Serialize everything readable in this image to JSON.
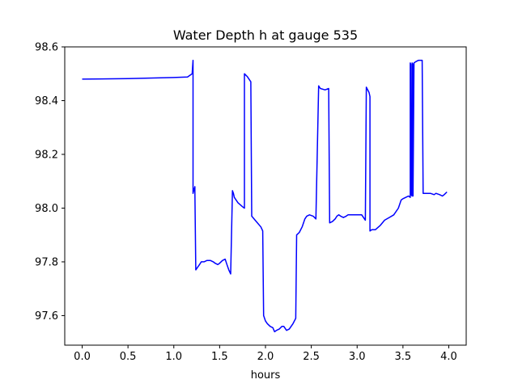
{
  "chart_data": {
    "type": "line",
    "title": "Water Depth h at gauge 535",
    "xlabel": "hours",
    "ylabel": "",
    "xlim": [
      -0.19,
      4.19
    ],
    "ylim": [
      97.49,
      98.6
    ],
    "xticks": [
      0.0,
      0.5,
      1.0,
      1.5,
      2.0,
      2.5,
      3.0,
      3.5,
      4.0
    ],
    "xtick_labels": [
      "0.0",
      "0.5",
      "1.0",
      "1.5",
      "2.0",
      "2.5",
      "3.0",
      "3.5",
      "4.0"
    ],
    "yticks": [
      97.6,
      97.8,
      98.0,
      98.2,
      98.4,
      98.6
    ],
    "ytick_labels": [
      "97.6",
      "97.8",
      "98.0",
      "98.2",
      "98.4",
      "98.6"
    ],
    "grid": false,
    "series": [
      {
        "name": "",
        "color": "#0000ff",
        "x": [
          0.0,
          0.5,
          1.0,
          1.15,
          1.2,
          1.21,
          1.21,
          1.22,
          1.23,
          1.23,
          1.24,
          1.26,
          1.28,
          1.3,
          1.33,
          1.36,
          1.4,
          1.43,
          1.45,
          1.48,
          1.5,
          1.53,
          1.56,
          1.58,
          1.6,
          1.62,
          1.64,
          1.65,
          1.66,
          1.7,
          1.75,
          1.77,
          1.77,
          1.8,
          1.84,
          1.85,
          1.9,
          1.95,
          1.97,
          1.98,
          2.0,
          2.02,
          2.05,
          2.08,
          2.1,
          2.12,
          2.15,
          2.18,
          2.2,
          2.23,
          2.26,
          2.3,
          2.33,
          2.34,
          2.34,
          2.37,
          2.4,
          2.43,
          2.45,
          2.48,
          2.52,
          2.55,
          2.58,
          2.59,
          2.6,
          2.65,
          2.69,
          2.7,
          2.7,
          2.73,
          2.76,
          2.78,
          2.8,
          2.82,
          2.85,
          2.88,
          2.9,
          2.95,
          3.0,
          3.05,
          3.08,
          3.09,
          3.1,
          3.13,
          3.14,
          3.14,
          3.16,
          3.2,
          3.25,
          3.3,
          3.35,
          3.4,
          3.45,
          3.48,
          3.5,
          3.53,
          3.56,
          3.58,
          3.58,
          3.585,
          3.59,
          3.6,
          3.6,
          3.61,
          3.61,
          3.62,
          3.64,
          3.67,
          3.7,
          3.71,
          3.72,
          3.76,
          3.8,
          3.84,
          3.86,
          3.9,
          3.93,
          3.95,
          3.98
        ],
        "y": [
          98.48,
          98.482,
          98.486,
          98.488,
          98.5,
          98.55,
          98.055,
          98.07,
          98.08,
          98.06,
          97.77,
          97.78,
          97.79,
          97.8,
          97.8,
          97.805,
          97.805,
          97.8,
          97.795,
          97.79,
          97.795,
          97.805,
          97.81,
          97.79,
          97.77,
          97.755,
          98.065,
          98.055,
          98.04,
          98.02,
          98.005,
          98.0,
          98.5,
          98.49,
          98.47,
          97.97,
          97.95,
          97.93,
          97.915,
          97.6,
          97.58,
          97.57,
          97.56,
          97.555,
          97.54,
          97.545,
          97.55,
          97.56,
          97.56,
          97.545,
          97.55,
          97.57,
          97.59,
          97.9,
          97.9,
          97.91,
          97.93,
          97.96,
          97.97,
          97.975,
          97.97,
          97.96,
          98.455,
          98.45,
          98.445,
          98.44,
          98.445,
          97.945,
          97.945,
          97.95,
          97.96,
          97.97,
          97.975,
          97.97,
          97.965,
          97.97,
          97.975,
          97.975,
          97.975,
          97.975,
          97.96,
          97.955,
          98.45,
          98.43,
          98.415,
          97.915,
          97.92,
          97.92,
          97.935,
          97.955,
          97.965,
          97.975,
          98.0,
          98.03,
          98.035,
          98.04,
          98.045,
          98.04,
          98.54,
          98.535,
          98.05,
          98.045,
          98.54,
          98.535,
          98.045,
          98.54,
          98.545,
          98.55,
          98.55,
          98.55,
          98.055,
          98.055,
          98.055,
          98.05,
          98.055,
          98.05,
          98.045,
          98.05,
          98.06
        ]
      }
    ]
  }
}
